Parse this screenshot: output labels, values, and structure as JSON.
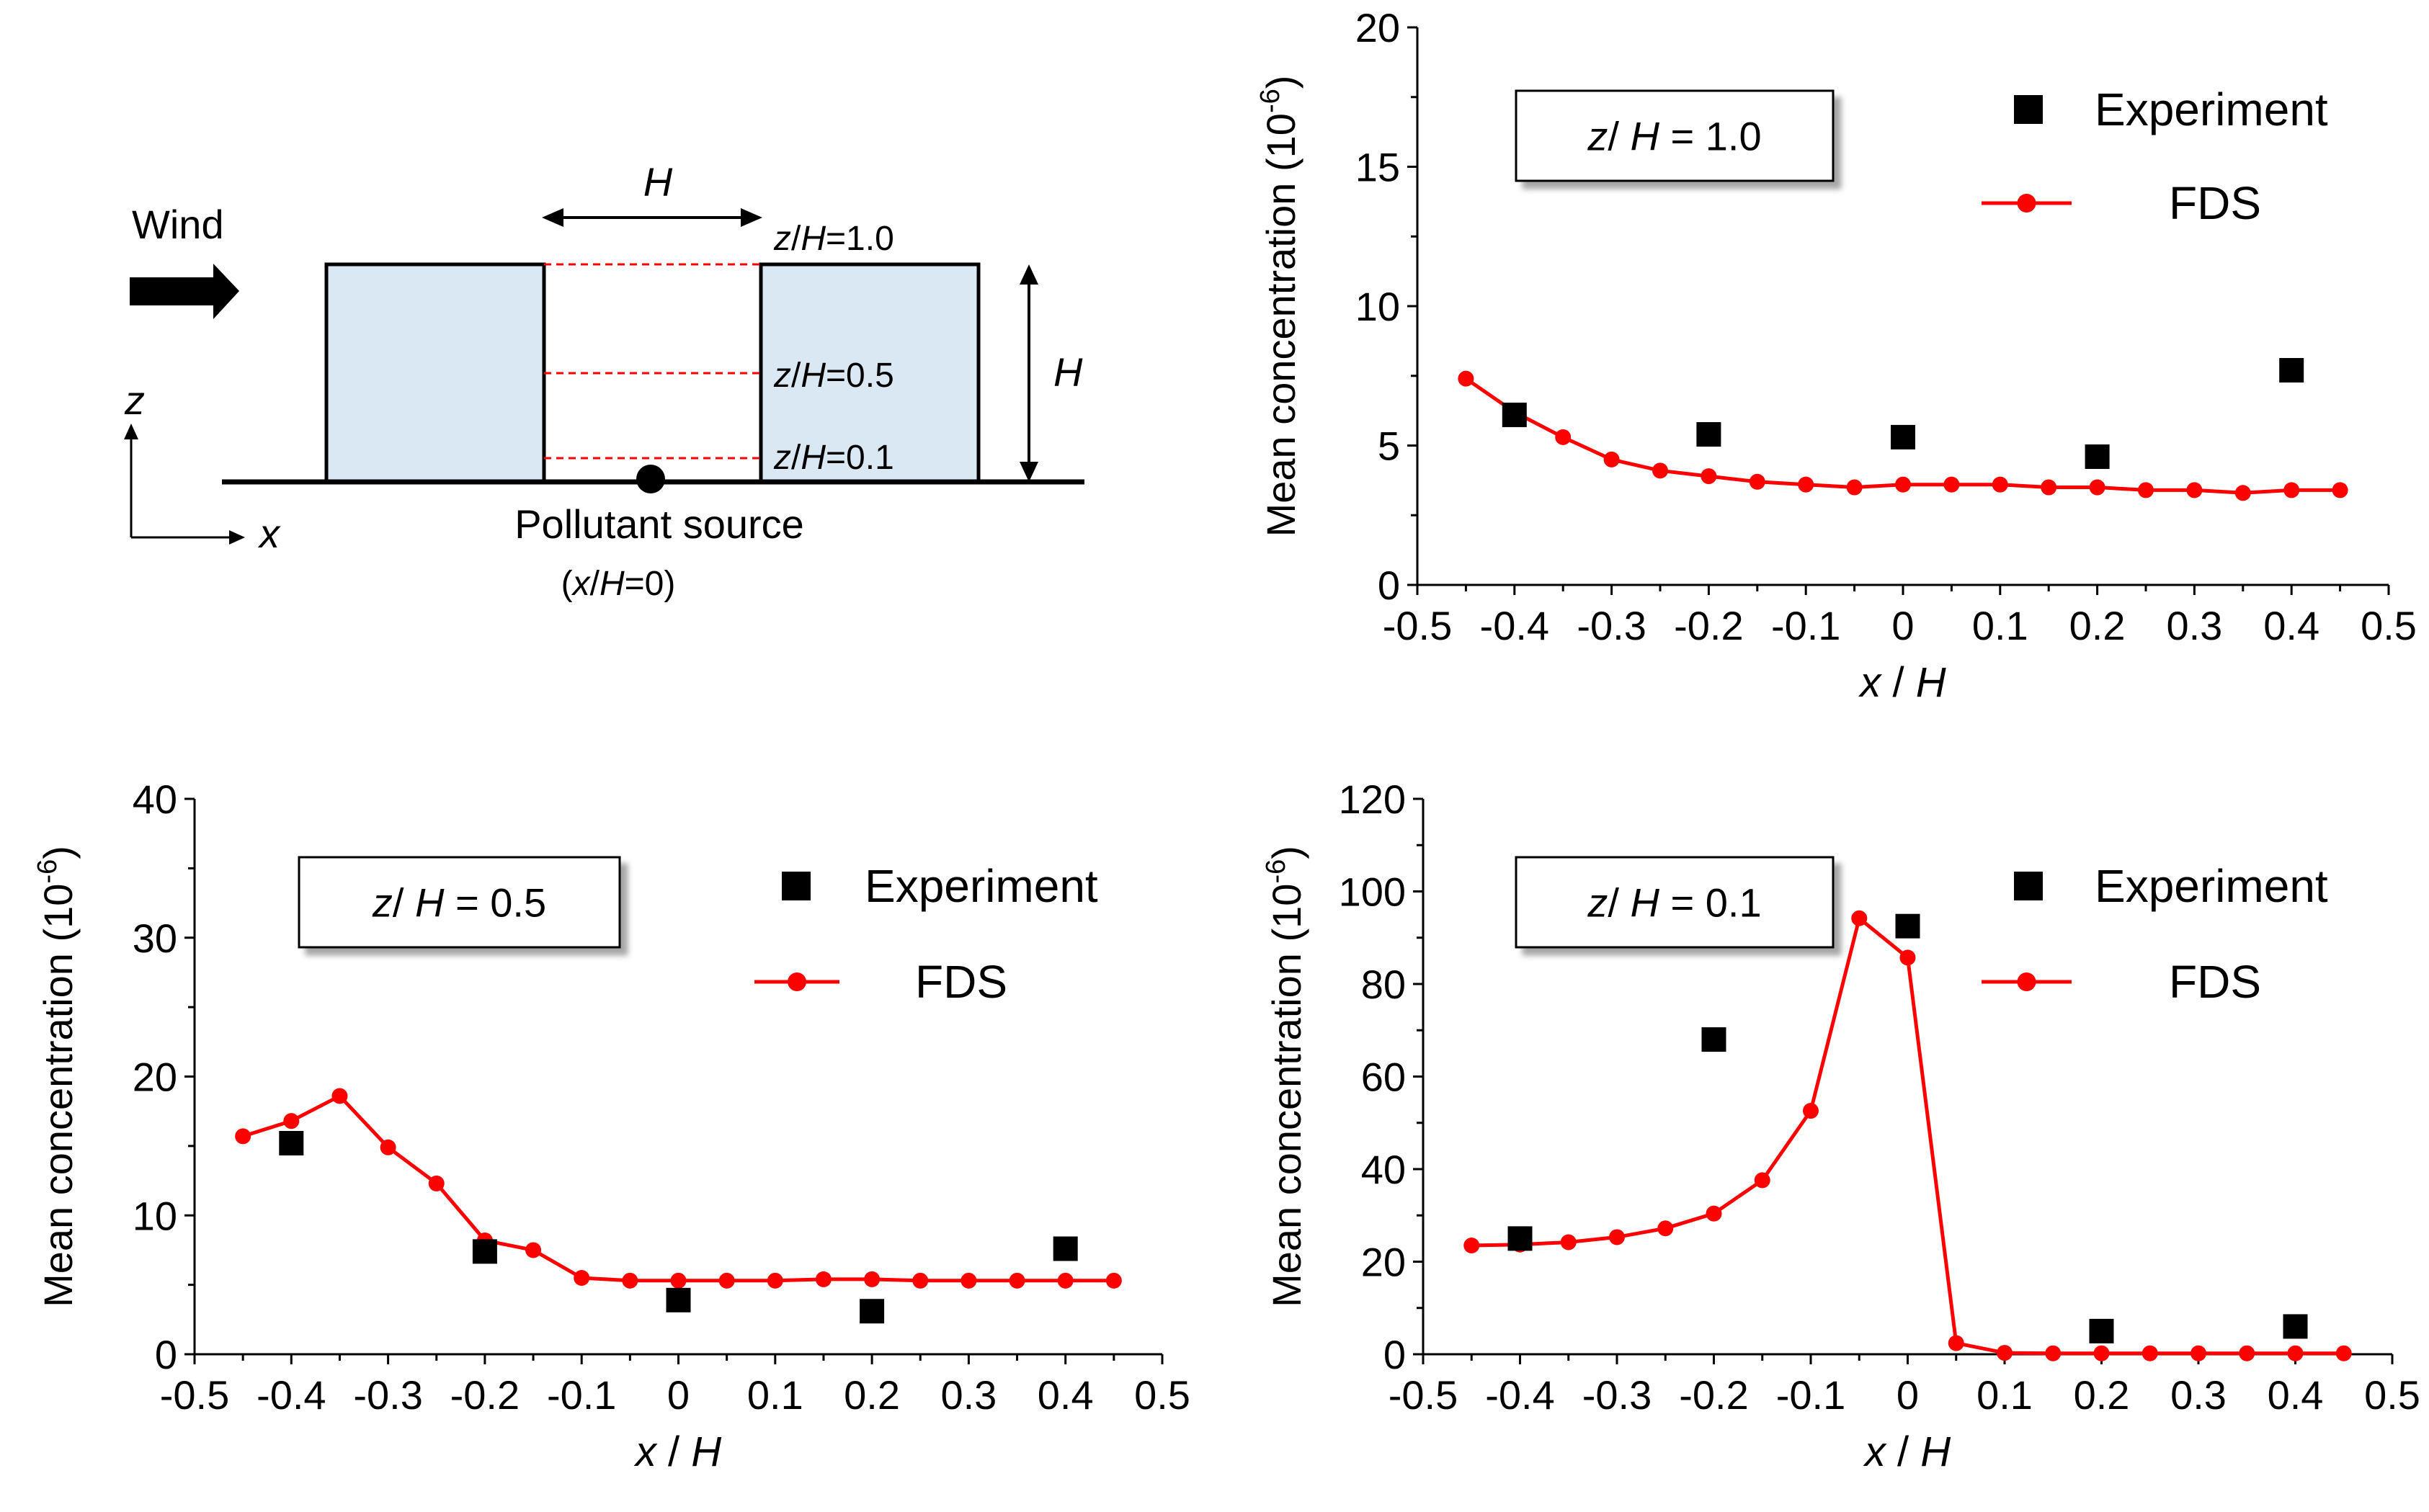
{
  "diagram": {
    "wind_label": "Wind",
    "h_label": "H",
    "h_right_label": "H",
    "z_axis_label": "z",
    "x_axis_label": "x",
    "level_labels": [
      {
        "z": "z",
        "slash": "/",
        "H": "H",
        "value": "=1.0"
      },
      {
        "z": "z",
        "slash": "/",
        "H": "H",
        "value": "=0.5"
      },
      {
        "z": "z",
        "slash": "/",
        "H": "H",
        "value": "=0.1"
      }
    ],
    "source_label": "Pollutant source",
    "source_pos": {
      "open": "(",
      "x": "x",
      "slash": "/",
      "H": "H",
      "rest": "=0)"
    }
  },
  "chart_data": [
    {
      "type": "line",
      "panel": "top-right",
      "box_label": {
        "z": "z",
        "slash": "/",
        "H": "H",
        "eq": " = 1.0"
      },
      "ylabel": "Mean concentration",
      "yunit_base": "(10",
      "yunit_exp": "-6",
      "yunit_close": ")",
      "xlabel": {
        "x": "x",
        "sep": " / ",
        "H": "H"
      },
      "xlim": [
        -0.5,
        0.5
      ],
      "ylim": [
        0,
        20
      ],
      "xticks": [
        "-0.5",
        "-0.4",
        "-0.3",
        "-0.2",
        "-0.1",
        "0",
        "0.1",
        "0.2",
        "0.3",
        "0.4",
        "0.5"
      ],
      "yticks": [
        "0",
        "5",
        "10",
        "15",
        "20"
      ],
      "ytick_values": [
        0,
        5,
        10,
        15,
        20
      ],
      "legend": [
        "Experiment",
        "FDS"
      ],
      "series": [
        {
          "name": "Experiment",
          "kind": "scatter",
          "color": "#000000",
          "x": [
            -0.4,
            -0.2,
            0,
            0.2,
            0.4
          ],
          "y": [
            6.1,
            5.4,
            5.3,
            4.6,
            7.7
          ]
        },
        {
          "name": "FDS",
          "kind": "line",
          "color": "#ff0000",
          "x": [
            -0.45,
            -0.4,
            -0.35,
            -0.3,
            -0.25,
            -0.2,
            -0.15,
            -0.1,
            -0.05,
            0,
            0.05,
            0.1,
            0.15,
            0.2,
            0.25,
            0.3,
            0.35,
            0.4,
            0.45
          ],
          "y": [
            7.4,
            6.2,
            5.3,
            4.5,
            4.1,
            3.9,
            3.7,
            3.6,
            3.5,
            3.6,
            3.6,
            3.6,
            3.5,
            3.5,
            3.4,
            3.4,
            3.3,
            3.4,
            3.4
          ]
        }
      ]
    },
    {
      "type": "line",
      "panel": "bottom-left",
      "box_label": {
        "z": "z",
        "slash": "/",
        "H": "H",
        "eq": " = 0.5"
      },
      "ylabel": "Mean concentration",
      "yunit_base": "(10",
      "yunit_exp": "-6",
      "yunit_close": ")",
      "xlabel": {
        "x": "x",
        "sep": " / ",
        "H": "H"
      },
      "xlim": [
        -0.5,
        0.5
      ],
      "ylim": [
        0,
        40
      ],
      "xticks": [
        "-0.5",
        "-0.4",
        "-0.3",
        "-0.2",
        "-0.1",
        "0",
        "0.1",
        "0.2",
        "0.3",
        "0.4",
        "0.5"
      ],
      "yticks": [
        "0",
        "10",
        "20",
        "30",
        "40"
      ],
      "ytick_values": [
        0,
        10,
        20,
        30,
        40
      ],
      "legend": [
        "Experiment",
        "FDS"
      ],
      "series": [
        {
          "name": "Experiment",
          "kind": "scatter",
          "color": "#000000",
          "x": [
            -0.4,
            -0.2,
            0,
            0.2,
            0.4
          ],
          "y": [
            15.2,
            7.4,
            3.9,
            3.1,
            7.6
          ]
        },
        {
          "name": "FDS",
          "kind": "line",
          "color": "#ff0000",
          "x": [
            -0.45,
            -0.4,
            -0.35,
            -0.3,
            -0.25,
            -0.2,
            -0.15,
            -0.1,
            -0.05,
            0,
            0.05,
            0.1,
            0.15,
            0.2,
            0.25,
            0.3,
            0.35,
            0.4,
            0.45
          ],
          "y": [
            15.7,
            16.8,
            18.6,
            14.9,
            12.3,
            8.2,
            7.5,
            5.5,
            5.3,
            5.3,
            5.3,
            5.3,
            5.4,
            5.4,
            5.3,
            5.3,
            5.3,
            5.3,
            5.3
          ]
        }
      ]
    },
    {
      "type": "line",
      "panel": "bottom-right",
      "box_label": {
        "z": "z",
        "slash": "/",
        "H": "H",
        "eq": " = 0.1"
      },
      "ylabel": "Mean concentration",
      "yunit_base": "(10",
      "yunit_exp": "-6",
      "yunit_close": ")",
      "xlabel": {
        "x": "x",
        "sep": " / ",
        "H": "H"
      },
      "xlim": [
        -0.5,
        0.5
      ],
      "ylim": [
        0,
        120
      ],
      "xticks": [
        "-0.5",
        "-0.4",
        "-0.3",
        "-0.2",
        "-0.1",
        "0",
        "0.1",
        "0.2",
        "0.3",
        "0.4",
        "0.5"
      ],
      "yticks": [
        "0",
        "20",
        "40",
        "60",
        "80",
        "100",
        "120"
      ],
      "ytick_values": [
        0,
        20,
        40,
        60,
        80,
        100,
        120
      ],
      "legend": [
        "Experiment",
        "FDS"
      ],
      "series": [
        {
          "name": "Experiment",
          "kind": "scatter",
          "color": "#000000",
          "x": [
            -0.4,
            -0.2,
            0,
            0.2,
            0.4
          ],
          "y": [
            25,
            68,
            92.5,
            5,
            6
          ]
        },
        {
          "name": "FDS",
          "kind": "line",
          "color": "#ff0000",
          "x": [
            -0.45,
            -0.4,
            -0.35,
            -0.3,
            -0.25,
            -0.2,
            -0.15,
            -0.1,
            -0.05,
            0,
            0.05,
            0.1,
            0.15,
            0.2,
            0.25,
            0.3,
            0.35,
            0.4,
            0.45
          ],
          "y": [
            23.5,
            23.7,
            24.2,
            25.3,
            27.2,
            30.4,
            37.6,
            52.6,
            94.2,
            85.7,
            2.4,
            0.3,
            0.2,
            0.2,
            0.2,
            0.2,
            0.2,
            0.2,
            0.2
          ]
        }
      ]
    }
  ]
}
